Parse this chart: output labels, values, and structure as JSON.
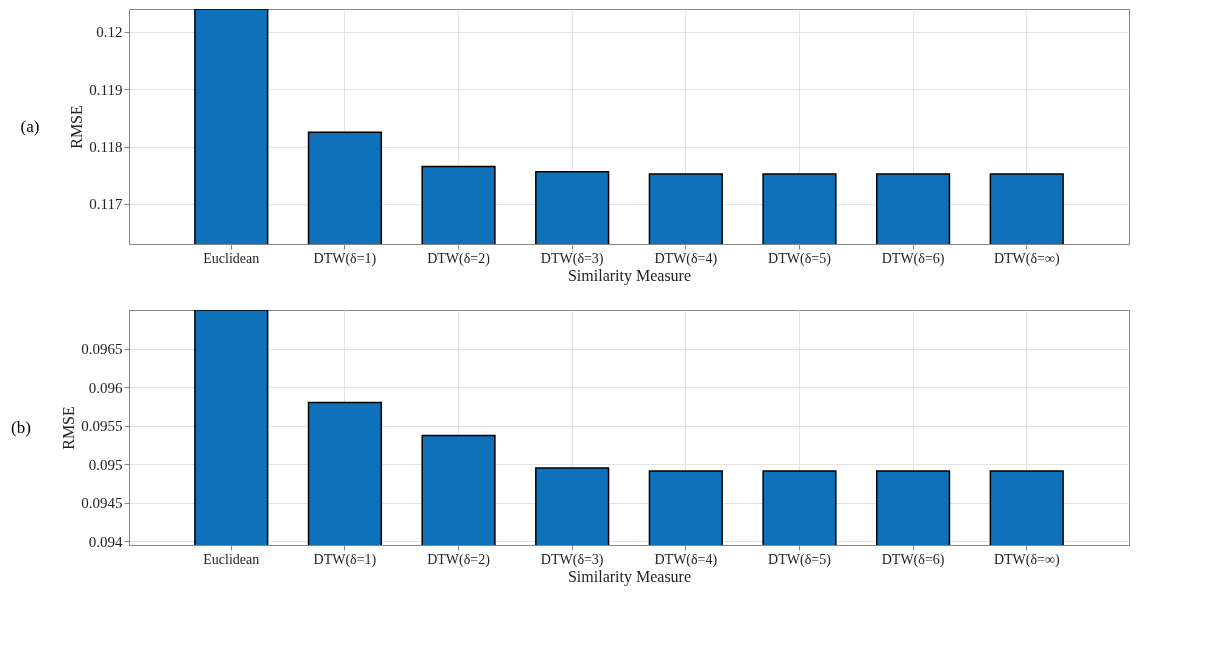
{
  "chart_data": [
    {
      "type": "bar",
      "title": "(a)",
      "xlabel": "Similarity Measure",
      "ylabel": "RMSE",
      "categories": [
        "Euclidean",
        "DTW(δ=1)",
        "DTW(δ=2)",
        "DTW(δ=3)",
        "DTW(δ=4)",
        "DTW(δ=5)",
        "DTW(δ=6)",
        "DTW(δ=∞)"
      ],
      "values": [
        0.1204,
        0.11825,
        0.11765,
        0.11756,
        0.11752,
        0.11752,
        0.11752,
        0.11752
      ],
      "color": "#0f71ba",
      "ylim": [
        0.1163,
        0.1204
      ],
      "yticks": [
        0.117,
        0.118,
        0.119,
        0.12
      ],
      "grid": true
    },
    {
      "type": "bar",
      "title": "(b)",
      "xlabel": "Similarity Measure",
      "ylabel": "RMSE",
      "categories": [
        "Euclidean",
        "DTW(δ=1)",
        "DTW(δ=2)",
        "DTW(δ=3)",
        "DTW(δ=4)",
        "DTW(δ=5)",
        "DTW(δ=6)",
        "DTW(δ=∞)"
      ],
      "values": [
        0.097,
        0.0958,
        0.09537,
        0.09495,
        0.09491,
        0.09491,
        0.09491,
        0.09491
      ],
      "color": "#0f71ba",
      "ylim": [
        0.09395,
        0.097
      ],
      "yticks": [
        0.094,
        0.0945,
        0.095,
        0.0955,
        0.096,
        0.0965
      ],
      "grid": true
    }
  ]
}
